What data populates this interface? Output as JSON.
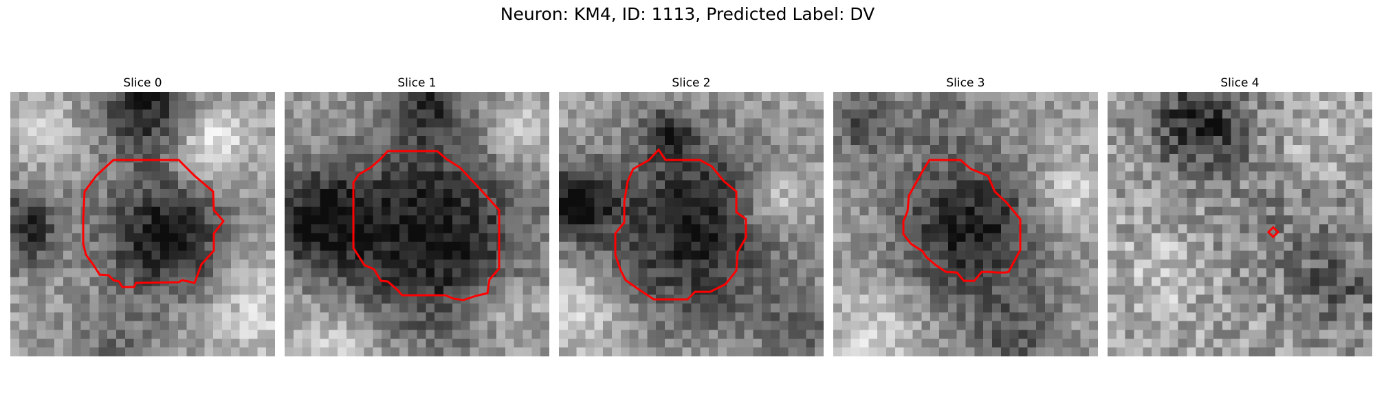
{
  "figure": {
    "title": "Neuron: KM4, ID: 1113, Predicted Label: DV"
  },
  "colors": {
    "contour": "#ff0000"
  },
  "panels": [
    {
      "title": "Slice 0"
    },
    {
      "title": "Slice 1"
    },
    {
      "title": "Slice 2"
    },
    {
      "title": "Slice 3"
    },
    {
      "title": "Slice 4"
    }
  ]
}
